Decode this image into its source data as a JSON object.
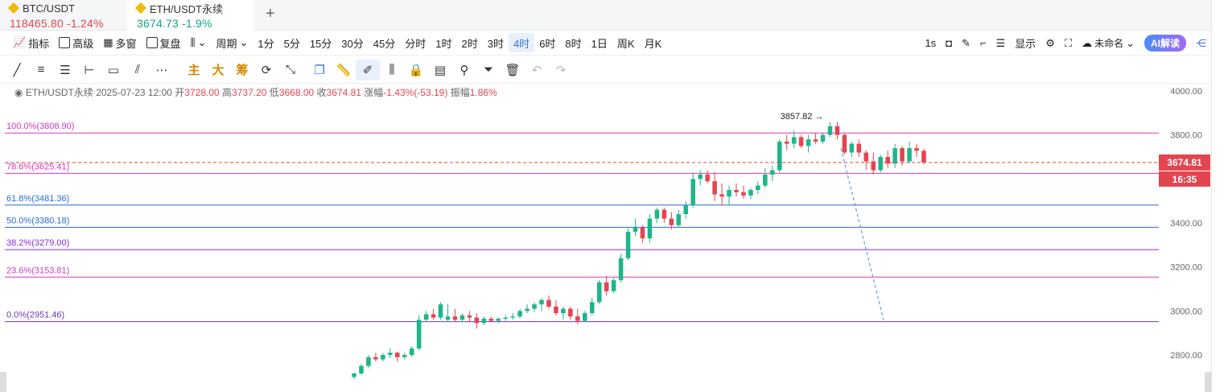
{
  "tabs": [
    {
      "name": "BTC/USDT",
      "price": "118465.80",
      "change": "-1.24%"
    },
    {
      "name": "ETH/USDT永续",
      "price": "3674.73",
      "change": "-1.9%"
    }
  ],
  "toolbar": {
    "indicator": "指标",
    "advanced": "高级",
    "multi_window": "多窗",
    "replay": "复盘",
    "period": "周期",
    "intervals": [
      "1分",
      "5分",
      "15分",
      "30分",
      "45分",
      "分时",
      "1时",
      "2时",
      "3时",
      "4时",
      "6时",
      "8时",
      "1日",
      "周K",
      "月K"
    ],
    "active_interval": "4时",
    "seconds": "1s",
    "display": "显示",
    "layout_name": "未命名",
    "ai": "AI解读"
  },
  "drawtools": {
    "main": "主",
    "big": "大",
    "chip": "筹"
  },
  "info": {
    "symbol": "ETH/USDT永续",
    "datetime": "2025-07-23 12:00",
    "open_label": "开",
    "open": "3728.00",
    "high_label": "高",
    "high": "3737.20",
    "low_label": "低",
    "low": "3668.00",
    "close_label": "收",
    "close": "3674.81",
    "change_label": "涨幅",
    "change": "-1.43%(-53.19)",
    "amp_label": "振幅",
    "amp": "1.86%"
  },
  "chart_data": {
    "type": "candlestick",
    "y_axis_ticks": [
      "4000.00",
      "3800.00",
      "3600.00",
      "3400.00",
      "3200.00",
      "3000.00",
      "2800.00"
    ],
    "ylim": [
      2700,
      4050
    ],
    "fib_levels": [
      {
        "label": "100.0%(3808.90)",
        "value": 3808.9,
        "color": "#d23ab8"
      },
      {
        "label": "78.6%(3625.41)",
        "value": 3625.41,
        "color": "#d23ab8"
      },
      {
        "label": "61.8%(3481.36)",
        "value": 3481.36,
        "color": "#2b6cd4"
      },
      {
        "label": "50.0%(3380.18)",
        "value": 3380.18,
        "color": "#2b6cd4"
      },
      {
        "label": "38.2%(3279.00)",
        "value": 3279.0,
        "color": "#8a2be2"
      },
      {
        "label": "23.6%(3153.81)",
        "value": 3153.81,
        "color": "#d23ab8"
      },
      {
        "label": "0.0%(2951.46)",
        "value": 2951.46,
        "color": "#6a3ab8"
      }
    ],
    "high_marker": "3857.82",
    "last_price": "3674.81",
    "countdown": "16:35",
    "candles": [
      [
        2700,
        2720,
        2690,
        2716
      ],
      [
        2716,
        2760,
        2710,
        2750
      ],
      [
        2750,
        2800,
        2740,
        2790
      ],
      [
        2790,
        2810,
        2770,
        2780
      ],
      [
        2780,
        2810,
        2770,
        2800
      ],
      [
        2800,
        2830,
        2785,
        2810
      ],
      [
        2810,
        2815,
        2770,
        2790
      ],
      [
        2790,
        2810,
        2780,
        2800
      ],
      [
        2800,
        2840,
        2790,
        2830
      ],
      [
        2830,
        2980,
        2820,
        2960
      ],
      [
        2960,
        3000,
        2950,
        2985
      ],
      [
        2985,
        3010,
        2960,
        2970
      ],
      [
        2970,
        3040,
        2960,
        3030
      ],
      [
        2960,
        3030,
        2950,
        2975
      ],
      [
        2975,
        3010,
        2950,
        2960
      ],
      [
        2960,
        2990,
        2950,
        2980
      ],
      [
        2980,
        3000,
        2950,
        2970
      ],
      [
        2970,
        2990,
        2920,
        2945
      ],
      [
        2945,
        2975,
        2935,
        2965
      ],
      [
        2965,
        2975,
        2950,
        2955
      ],
      [
        2955,
        2970,
        2945,
        2965
      ],
      [
        2965,
        2980,
        2955,
        2970
      ],
      [
        2970,
        2990,
        2960,
        2975
      ],
      [
        2975,
        3010,
        2965,
        3000
      ],
      [
        3000,
        3030,
        2990,
        3010
      ],
      [
        3010,
        3040,
        2995,
        3030
      ],
      [
        3030,
        3060,
        3000,
        3050
      ],
      [
        3050,
        3070,
        3010,
        3020
      ],
      [
        3020,
        3050,
        2980,
        2990
      ],
      [
        2990,
        3020,
        2960,
        3010
      ],
      [
        3010,
        3020,
        2960,
        2975
      ],
      [
        2975,
        3010,
        2940,
        2955
      ],
      [
        2955,
        3000,
        2950,
        2990
      ],
      [
        2990,
        3060,
        2980,
        3040
      ],
      [
        3040,
        3140,
        3030,
        3130
      ],
      [
        3130,
        3160,
        3070,
        3090
      ],
      [
        3090,
        3150,
        3080,
        3140
      ],
      [
        3140,
        3260,
        3130,
        3240
      ],
      [
        3240,
        3380,
        3230,
        3360
      ],
      [
        3360,
        3420,
        3340,
        3380
      ],
      [
        3380,
        3390,
        3310,
        3330
      ],
      [
        3330,
        3440,
        3310,
        3420
      ],
      [
        3420,
        3470,
        3400,
        3460
      ],
      [
        3460,
        3470,
        3400,
        3420
      ],
      [
        3420,
        3450,
        3370,
        3390
      ],
      [
        3390,
        3460,
        3380,
        3440
      ],
      [
        3440,
        3500,
        3420,
        3480
      ],
      [
        3480,
        3630,
        3470,
        3600
      ],
      [
        3600,
        3640,
        3570,
        3620
      ],
      [
        3620,
        3640,
        3580,
        3590
      ],
      [
        3590,
        3630,
        3500,
        3530
      ],
      [
        3530,
        3580,
        3480,
        3520
      ],
      [
        3520,
        3570,
        3480,
        3550
      ],
      [
        3550,
        3580,
        3520,
        3540
      ],
      [
        3540,
        3570,
        3510,
        3525
      ],
      [
        3525,
        3560,
        3510,
        3550
      ],
      [
        3550,
        3590,
        3530,
        3570
      ],
      [
        3570,
        3650,
        3560,
        3620
      ],
      [
        3620,
        3660,
        3590,
        3640
      ],
      [
        3640,
        3780,
        3630,
        3770
      ],
      [
        3770,
        3800,
        3730,
        3760
      ],
      [
        3760,
        3820,
        3740,
        3790
      ],
      [
        3790,
        3800,
        3740,
        3750
      ],
      [
        3750,
        3800,
        3720,
        3780
      ],
      [
        3780,
        3810,
        3760,
        3770
      ],
      [
        3770,
        3810,
        3760,
        3800
      ],
      [
        3800,
        3858,
        3790,
        3840
      ],
      [
        3840,
        3860,
        3780,
        3800
      ],
      [
        3800,
        3810,
        3710,
        3720
      ],
      [
        3720,
        3770,
        3700,
        3760
      ],
      [
        3760,
        3780,
        3700,
        3720
      ],
      [
        3720,
        3730,
        3640,
        3680
      ],
      [
        3680,
        3720,
        3620,
        3640
      ],
      [
        3640,
        3710,
        3630,
        3700
      ],
      [
        3700,
        3730,
        3650,
        3670
      ],
      [
        3670,
        3760,
        3650,
        3740
      ],
      [
        3740,
        3750,
        3660,
        3680
      ],
      [
        3680,
        3770,
        3670,
        3740
      ],
      [
        3740,
        3760,
        3700,
        3728
      ],
      [
        3728,
        3737,
        3668,
        3675
      ]
    ]
  }
}
